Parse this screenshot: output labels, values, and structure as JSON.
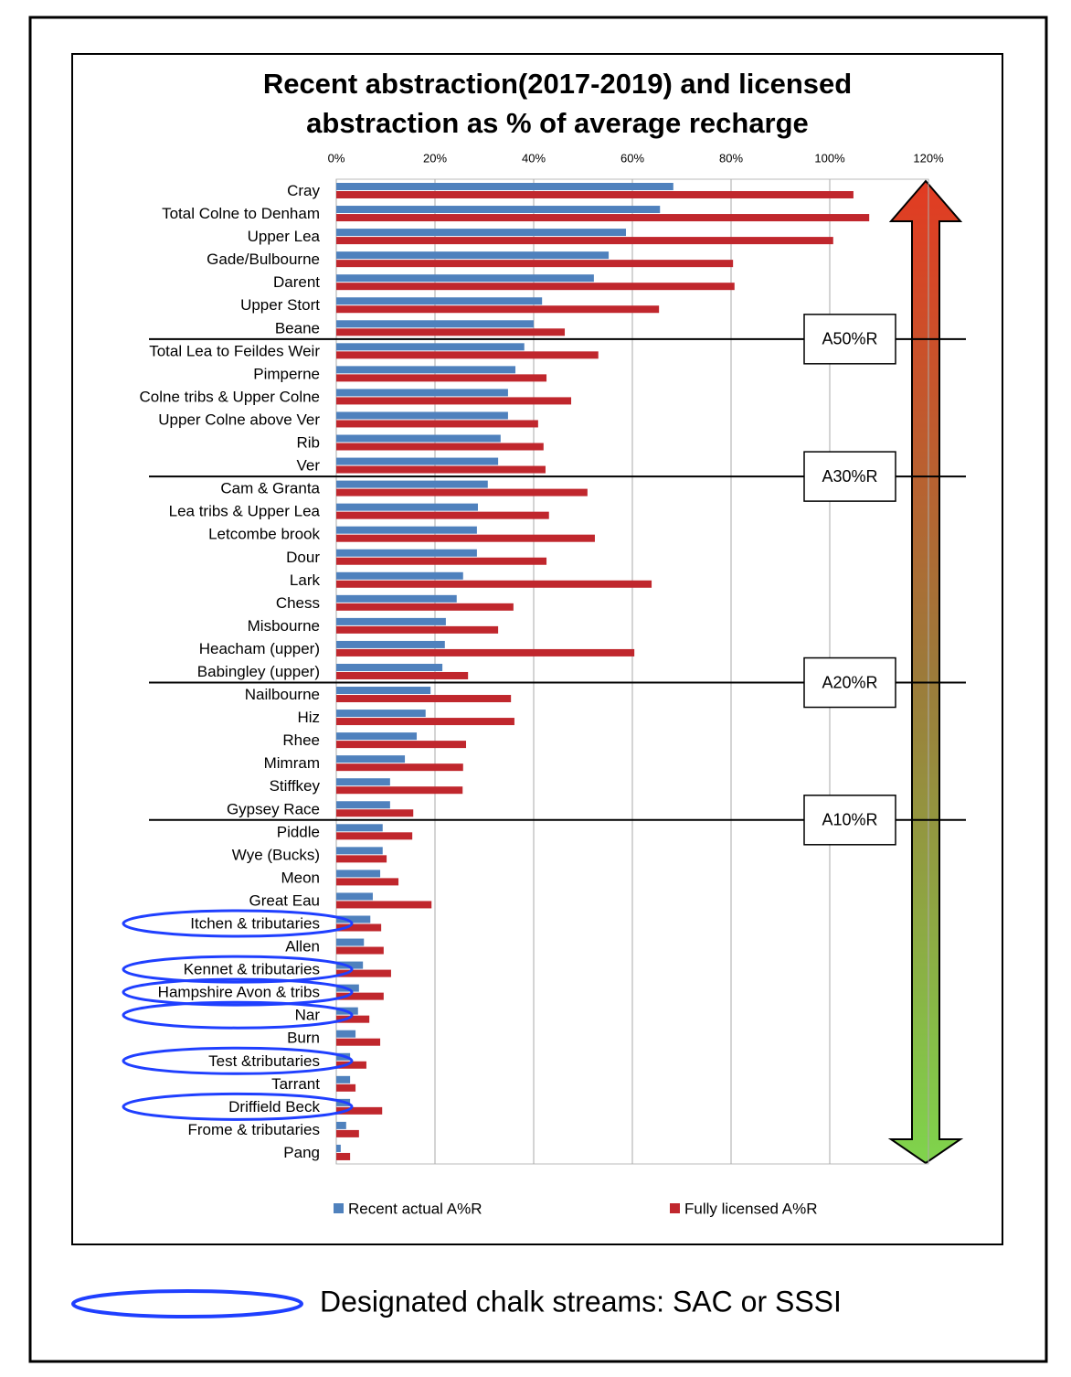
{
  "chart_data": {
    "type": "bar",
    "orientation": "horizontal",
    "title": "Recent abstraction(2017-2019) and licensed abstraction as % of average recharge",
    "categories": [
      "Cray",
      "Total Colne to Denham",
      "Upper Lea",
      "Gade/Bulbourne",
      "Darent",
      "Upper Stort",
      "Beane",
      "Total Lea to Feildes Weir",
      "Pimperne",
      "Colne tribs & Upper Colne",
      "Upper Colne above Ver",
      "Rib",
      "Ver",
      "Cam & Granta",
      "Lea tribs & Upper Lea",
      "Letcombe brook",
      "Dour",
      "Lark",
      "Chess",
      "Misbourne",
      "Heacham (upper)",
      "Babingley (upper)",
      "Nailbourne",
      "Hiz",
      "Rhee",
      "Mimram",
      "Stiffkey",
      "Gypsey Race",
      "Piddle",
      "Wye (Bucks)",
      "Meon",
      "Great Eau",
      "Itchen & tributaries",
      "Allen",
      "Kennet & tributaries",
      "Hampshire Avon & tribs",
      "Nar",
      "Burn",
      "Test &tributaries",
      "Tarrant",
      "Driffield Beck",
      "Frome & tributaries",
      "Pang"
    ],
    "series": [
      {
        "name": "Recent actual A%R",
        "color": "#4f81bd",
        "values": [
          68.3,
          65.6,
          58.7,
          55.2,
          52.2,
          41.7,
          40,
          38.1,
          36.3,
          34.8,
          34.8,
          33.3,
          32.8,
          30.7,
          28.7,
          28.5,
          28.5,
          25.7,
          24.4,
          22.2,
          22,
          21.5,
          19.1,
          18.1,
          16.3,
          13.9,
          10.9,
          10.9,
          9.4,
          9.4,
          8.9,
          7.4,
          6.9,
          5.6,
          5.4,
          4.6,
          4.4,
          3.9,
          2.8,
          2.8,
          2.8,
          2,
          0.9
        ]
      },
      {
        "name": "Fully licensed A%R",
        "color": "#c0272d",
        "values": [
          104.8,
          108,
          100.7,
          80.4,
          80.7,
          65.4,
          46.3,
          53.1,
          42.6,
          47.6,
          40.9,
          42,
          42.4,
          50.9,
          43.1,
          52.4,
          42.6,
          63.9,
          35.9,
          32.8,
          60.4,
          26.7,
          35.4,
          36.1,
          26.3,
          25.7,
          25.6,
          15.6,
          15.4,
          10.2,
          12.6,
          19.3,
          9.1,
          9.6,
          11.1,
          9.6,
          6.7,
          8.9,
          6.1,
          3.9,
          9.3,
          4.6,
          2.8
        ]
      }
    ],
    "xlim": [
      0,
      120
    ],
    "xticks": [
      {
        "value": 0,
        "label": "0%"
      },
      {
        "value": 20,
        "label": "20%"
      },
      {
        "value": 40,
        "label": "40%"
      },
      {
        "value": 60,
        "label": "60%"
      },
      {
        "value": 80,
        "label": "80%"
      },
      {
        "value": 100,
        "label": "100%"
      },
      {
        "value": 120,
        "label": "120%"
      }
    ],
    "grid": true,
    "thresholds": [
      "A50%R",
      "A30%R",
      "A20%R",
      "A10%R"
    ],
    "highlighted": [
      32,
      34,
      35,
      36,
      38,
      40
    ],
    "note": "Designated chalk streams: SAC or SSSI"
  }
}
